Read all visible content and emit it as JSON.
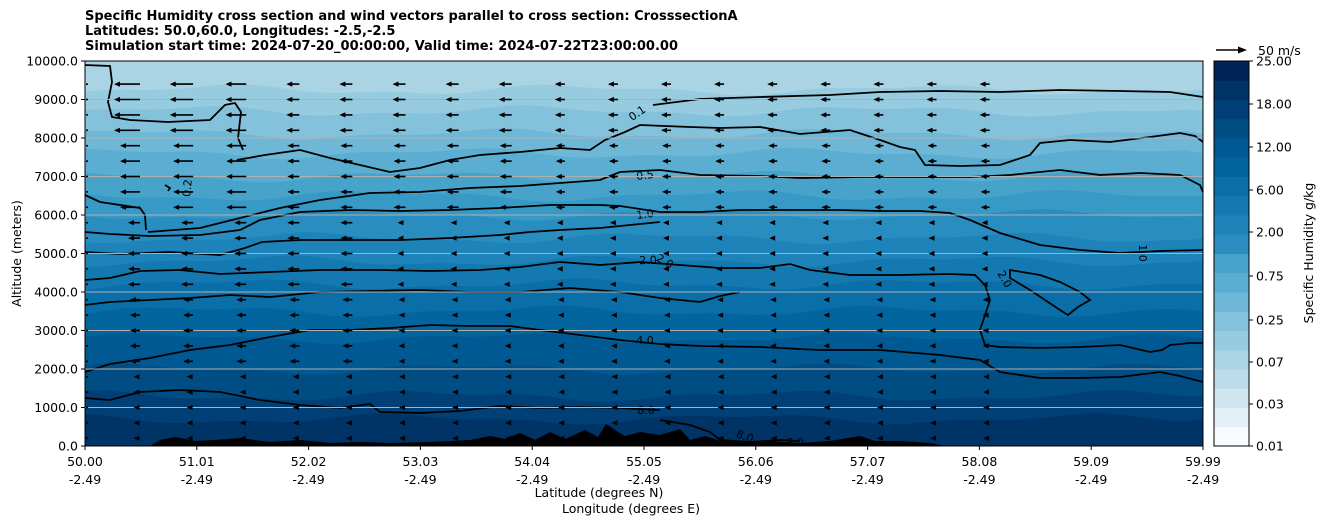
{
  "title_lines": [
    "Specific Humidity cross section and wind vectors parallel to cross section: CrosssectionA",
    "Latitudes: 50.0,60.0, Longitudes: -2.5,-2.5",
    "Simulation start time: 2024-07-20_00:00:00, Valid time: 2024-07-22T23:00:00.00"
  ],
  "chart_data": {
    "type": "heatmap",
    "title": "Specific Humidity cross section and wind vectors parallel to cross section: CrosssectionA",
    "ylabel": "Altitude (meters)",
    "xlabel_lines": [
      "Latitude (degrees N)",
      "Longitude (degrees E)"
    ],
    "ylim": [
      0,
      10000
    ],
    "yticks": [
      "0.0",
      "1000.0",
      "2000.0",
      "3000.0",
      "4000.0",
      "5000.0",
      "6000.0",
      "7000.0",
      "8000.0",
      "9000.0",
      "10000.0"
    ],
    "xticks": [
      {
        "lat": "50.00",
        "lon": "-2.49"
      },
      {
        "lat": "51.01",
        "lon": "-2.49"
      },
      {
        "lat": "52.02",
        "lon": "-2.49"
      },
      {
        "lat": "53.03",
        "lon": "-2.49"
      },
      {
        "lat": "54.04",
        "lon": "-2.49"
      },
      {
        "lat": "55.05",
        "lon": "-2.49"
      },
      {
        "lat": "56.06",
        "lon": "-2.49"
      },
      {
        "lat": "57.07",
        "lon": "-2.49"
      },
      {
        "lat": "58.08",
        "lon": "-2.49"
      },
      {
        "lat": "59.09",
        "lon": "-2.49"
      },
      {
        "lat": "59.99",
        "lon": "-2.49"
      }
    ],
    "colorbar": {
      "label": "Specific Humidity g/kg",
      "tick_labels": [
        "0.01",
        "0.03",
        "0.07",
        "0.25",
        "0.75",
        "2.00",
        "6.00",
        "12.00",
        "18.00",
        "25.00"
      ],
      "levels": 20,
      "colors": [
        "#f7fbff",
        "#e3eef7",
        "#d0e5f0",
        "#bddcea",
        "#aad3e4",
        "#97cbe0",
        "#84c1db",
        "#6fb7d6",
        "#5baed1",
        "#48a3cb",
        "#3799c6",
        "#2a8dbf",
        "#1e83b8",
        "#1479b0",
        "#0a6fa8",
        "#03659e",
        "#005992",
        "#004d84",
        "#004076",
        "#003366",
        "#002458"
      ]
    },
    "contours": [
      {
        "label": "0.1",
        "altitude_m": 8700
      },
      {
        "label": "0.2",
        "altitude_m": 6600
      },
      {
        "label": "0.5",
        "altitude_m": 7050
      },
      {
        "label": "1.0",
        "altitude_m": 6200
      },
      {
        "label": "2.0",
        "altitude_m": 4800
      },
      {
        "label": "4.0",
        "altitude_m": 2800
      },
      {
        "label": "8.0",
        "altitude_m": 900
      }
    ],
    "quiver_key": "50 m/s",
    "wind": "westward arrows, strongest near 8000–10000 m on the southern side (50–51.5 N)"
  }
}
